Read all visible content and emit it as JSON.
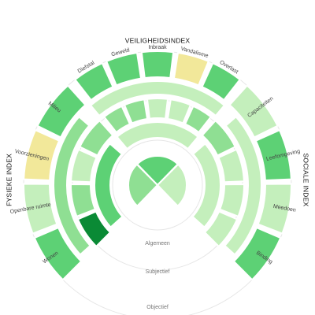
{
  "chart_data": {
    "type": "radial-heatmap",
    "indices": [
      {
        "key": "fysiek",
        "title": "FYSIEKE INDEX"
      },
      {
        "key": "veiligheid",
        "title": "VEILIGHEIDSINDEX"
      },
      {
        "key": "sociaal",
        "title": "SOCIALE INDEX"
      }
    ],
    "levels": [
      "Algemeen",
      "Subjectief",
      "Objectief"
    ],
    "categories": {
      "fysiek": [
        "Wonen",
        "Openbare ruimte",
        "Voorzieningen",
        "Milieu"
      ],
      "veiligheid": [
        "Diefstal",
        "Geweld",
        "Inbraak",
        "Vandalisme",
        "Overlast"
      ],
      "sociaal": [
        "Capaciteiten",
        "Leefomgeving",
        "Meedoen",
        "Binding"
      ]
    },
    "values": {
      "algemeen": {
        "fysiek": 3,
        "veiligheid": 2,
        "sociaal": 4
      },
      "subjectief": {
        "fysiek": 2,
        "veiligheid": 4,
        "sociaal": 4
      },
      "objectief": {
        "fysiek": 3,
        "veiligheid": 4,
        "sociaal": 4
      },
      "objectief_detail": {
        "fysiek": [
          4,
          4,
          4,
          4
        ],
        "veiligheid": [
          4,
          4,
          4,
          4,
          4
        ],
        "sociaal": [
          3,
          3,
          3,
          3
        ]
      },
      "subjectief_detail": {
        "fysiek": [
          1,
          3,
          4,
          3
        ],
        "veiligheid": [
          3,
          3,
          4,
          4,
          3
        ],
        "sociaal": [
          3,
          4,
          4,
          4
        ]
      },
      "buurt_detail": {
        "fysiek": [
          2,
          4,
          5,
          2
        ],
        "veiligheid": [
          2,
          2,
          2,
          5,
          2
        ],
        "sociaal": [
          4,
          2,
          4,
          2
        ]
      }
    },
    "color_scale": {
      "1": "#0a8a35",
      "2": "#5dd175",
      "3": "#8fdf93",
      "4": "#c4efbc",
      "5": "#f2e89a"
    },
    "grid": false,
    "legend": "none"
  }
}
